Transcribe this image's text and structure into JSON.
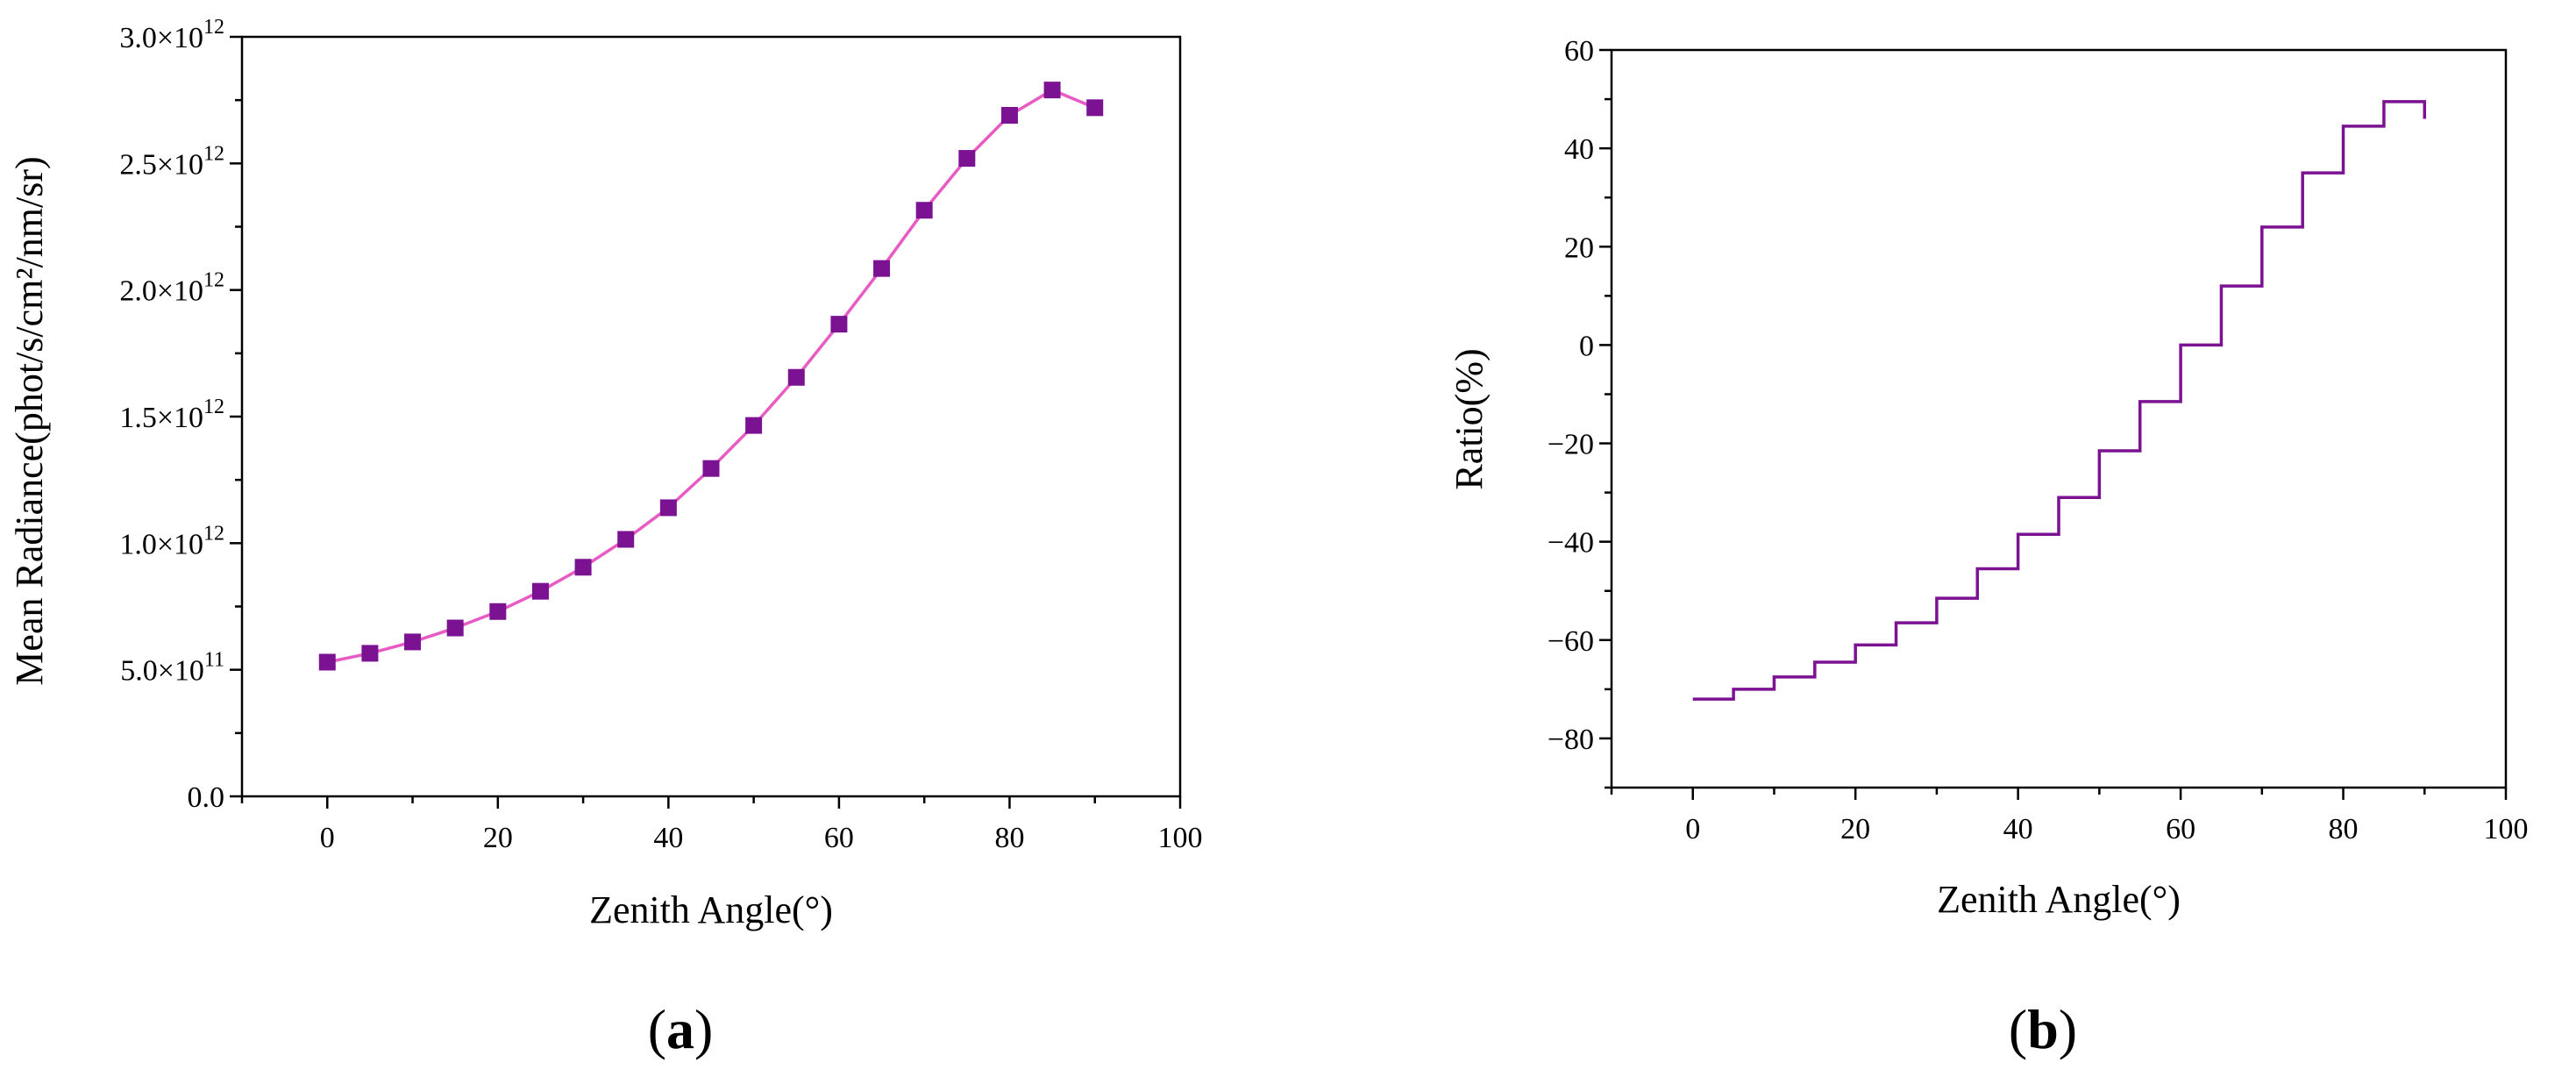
{
  "chart_data": [
    {
      "type": "line",
      "panel": "a",
      "panel_label_open": "(",
      "panel_label_letter": "a",
      "panel_label_close": ")",
      "xlabel": "Zenith Angle(°)",
      "ylabel": "Mean Radiance(phot/s/cm²/nm/sr)",
      "xlim": [
        -10,
        100
      ],
      "ylim": [
        0,
        3000000000000.0
      ],
      "xticks": [
        0,
        20,
        40,
        60,
        80,
        100
      ],
      "xtick_labels": [
        "0",
        "20",
        "40",
        "60",
        "80",
        "100"
      ],
      "yticks": [
        0,
        500000000000.0,
        1000000000000.0,
        1500000000000.0,
        2000000000000.0,
        2500000000000.0,
        3000000000000.0
      ],
      "ytick_labels": [
        {
          "base": "0.0",
          "exp": ""
        },
        {
          "base": "5.0×10",
          "exp": "11"
        },
        {
          "base": "1.0×10",
          "exp": "12"
        },
        {
          "base": "1.5×10",
          "exp": "12"
        },
        {
          "base": "2.0×10",
          "exp": "12"
        },
        {
          "base": "2.5×10",
          "exp": "12"
        },
        {
          "base": "3.0×10",
          "exp": "12"
        }
      ],
      "series": [
        {
          "name": "Mean Radiance",
          "line_color": "#e85bc4",
          "marker_color": "#7b1291",
          "x": [
            0,
            5,
            10,
            15,
            20,
            25,
            30,
            35,
            40,
            45,
            50,
            55,
            60,
            65,
            70,
            75,
            80,
            85,
            90
          ],
          "y": [
            530000000000.0,
            565000000000.0,
            610000000000.0,
            665000000000.0,
            730000000000.0,
            810000000000.0,
            905000000000.0,
            1015000000000.0,
            1140000000000.0,
            1295000000000.0,
            1465000000000.0,
            1655000000000.0,
            1865000000000.0,
            2085000000000.0,
            2315000000000.0,
            2520000000000.0,
            2690000000000.0,
            2790000000000.0,
            2720000000000.0
          ]
        }
      ]
    },
    {
      "type": "line",
      "subtype": "step",
      "panel": "b",
      "panel_label_open": "(",
      "panel_label_letter": "b",
      "panel_label_close": ")",
      "xlabel": "Zenith Angle(°)",
      "ylabel": "Ratio(%)",
      "xlim": [
        -10,
        100
      ],
      "ylim": [
        -90,
        60
      ],
      "xticks": [
        0,
        20,
        40,
        60,
        80,
        100
      ],
      "xtick_labels": [
        "0",
        "20",
        "40",
        "60",
        "80",
        "100"
      ],
      "yticks": [
        -80,
        -60,
        -40,
        -20,
        0,
        20,
        40,
        60
      ],
      "ytick_labels": [
        "−80",
        "−60",
        "−40",
        "−20",
        "0",
        "20",
        "40",
        "60"
      ],
      "series": [
        {
          "name": "Ratio",
          "line_color": "#7b1291",
          "x": [
            0,
            5,
            10,
            15,
            20,
            25,
            30,
            35,
            40,
            45,
            50,
            55,
            60,
            65,
            70,
            75,
            80,
            85,
            90
          ],
          "y": [
            -72,
            -70,
            -67.5,
            -64.5,
            -61,
            -56.5,
            -51.5,
            -45.5,
            -38.5,
            -31,
            -21.5,
            -11.5,
            0,
            12,
            24,
            35,
            44.5,
            49.5,
            46
          ]
        }
      ]
    }
  ]
}
